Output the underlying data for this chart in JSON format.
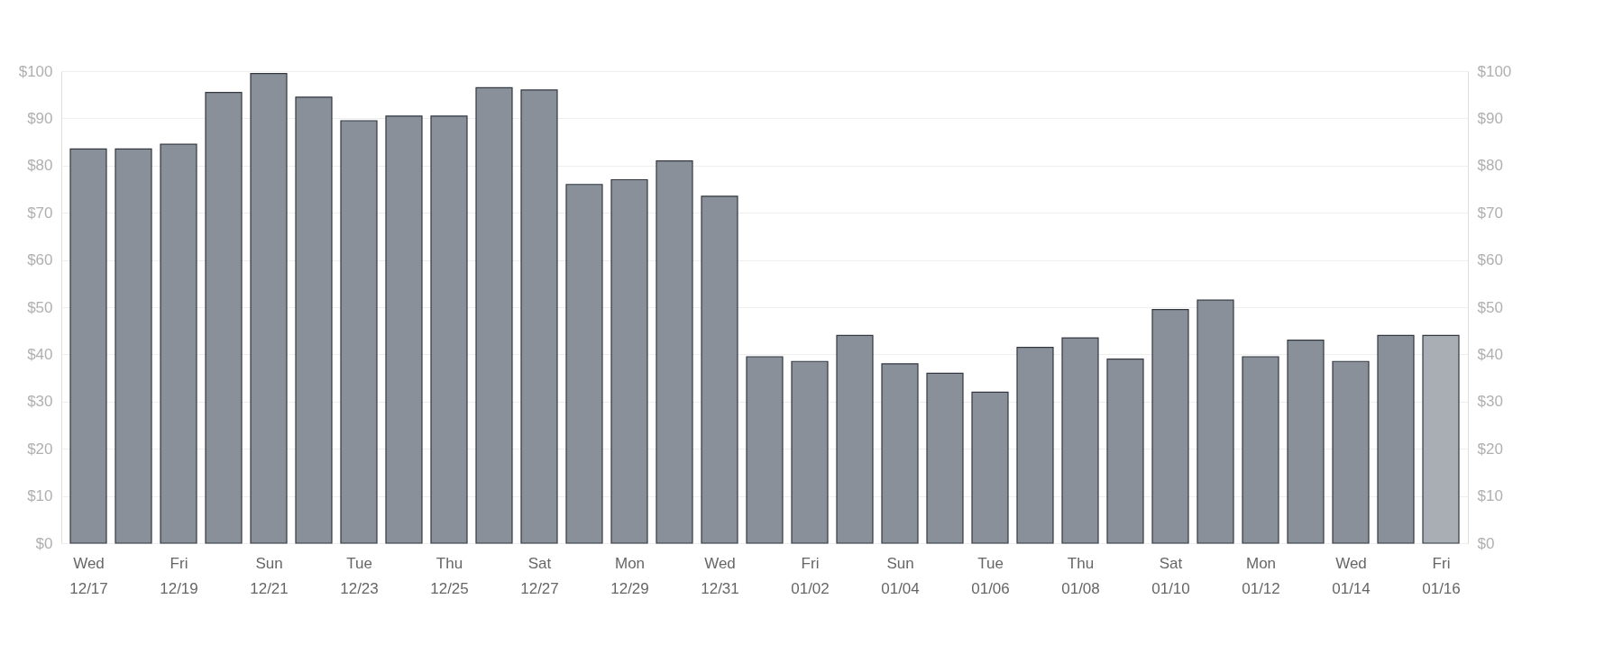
{
  "chart_data": {
    "type": "bar",
    "categories": [
      "Wed 12/17",
      null,
      "Fri 12/19",
      null,
      "Sun 12/21",
      null,
      "Tue 12/23",
      null,
      "Thu 12/25",
      null,
      "Sat 12/27",
      null,
      "Mon 12/29",
      null,
      "Wed 12/31",
      null,
      "Fri 01/02",
      null,
      "Sun 01/04",
      null,
      "Tue 01/06",
      null,
      "Thu 01/08",
      null,
      "Sat 01/10",
      null,
      "Mon 01/12",
      null,
      "Wed 01/14",
      null,
      "Fri 01/16"
    ],
    "values": [
      83.5,
      83.5,
      84.5,
      95.5,
      99.5,
      94.5,
      89.5,
      90.5,
      90.5,
      96.5,
      96,
      76,
      77,
      81,
      73.5,
      39.5,
      38.5,
      44,
      38,
      36,
      32,
      41.5,
      43.5,
      39,
      49.5,
      51.5,
      39.5,
      43,
      38.5,
      44,
      44
    ],
    "colors": [
      "#8a909a",
      "#8a909a",
      "#8a909a",
      "#8a909a",
      "#8a909a",
      "#8a909a",
      "#8a909a",
      "#8a909a",
      "#8a909a",
      "#8a909a",
      "#8a909a",
      "#8a909a",
      "#8a909a",
      "#8a909a",
      "#8a909a",
      "#8a909a",
      "#8a909a",
      "#8a909a",
      "#8a909a",
      "#8a909a",
      "#8a909a",
      "#8a909a",
      "#8a909a",
      "#8a909a",
      "#8a909a",
      "#8a909a",
      "#8a909a",
      "#8a909a",
      "#8a909a",
      "#8a909a",
      "#a9aeb5"
    ],
    "ylim": [
      0,
      100
    ],
    "yticks": [
      {
        "value": 0,
        "label": "$0"
      },
      {
        "value": 10,
        "label": "$10"
      },
      {
        "value": 20,
        "label": "$20"
      },
      {
        "value": 30,
        "label": "$30"
      },
      {
        "value": 40,
        "label": "$40"
      },
      {
        "value": 50,
        "label": "$50"
      },
      {
        "value": 60,
        "label": "$60"
      },
      {
        "value": 70,
        "label": "$70"
      },
      {
        "value": 80,
        "label": "$80"
      },
      {
        "value": 90,
        "label": "$90"
      },
      {
        "value": 100,
        "label": "$100"
      }
    ],
    "y2lim": [
      0,
      100
    ],
    "y2ticks": [
      {
        "value": 0,
        "label": "$0"
      },
      {
        "value": 10,
        "label": "$10"
      },
      {
        "value": 20,
        "label": "$20"
      },
      {
        "value": 30,
        "label": "$30"
      },
      {
        "value": 40,
        "label": "$40"
      },
      {
        "value": 50,
        "label": "$50"
      },
      {
        "value": 60,
        "label": "$60"
      },
      {
        "value": 70,
        "label": "$70"
      },
      {
        "value": 80,
        "label": "$80"
      },
      {
        "value": 90,
        "label": "$90"
      },
      {
        "value": 100,
        "label": "$100"
      }
    ],
    "grid": "y",
    "legend": false
  }
}
